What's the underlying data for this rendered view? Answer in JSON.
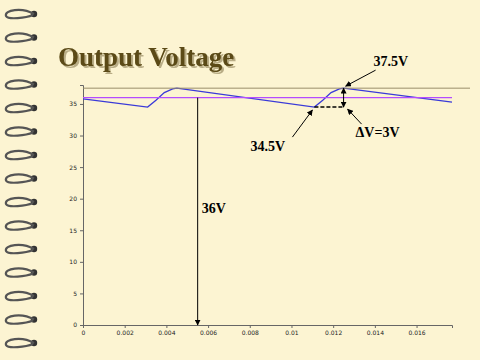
{
  "chart_data": {
    "type": "line",
    "title": "Output Voltage",
    "xlim": [
      0,
      0.0177
    ],
    "xticks": [
      0,
      0.002,
      0.004,
      0.006,
      0.008,
      0.01,
      0.012,
      0.014,
      0.016
    ],
    "ylim": [
      0,
      38
    ],
    "yticks": [
      0,
      5,
      10,
      15,
      20,
      25,
      30,
      35
    ],
    "series": [
      {
        "color": "#3a3ad8",
        "x": [
          0,
          0.0031,
          0.0035,
          0.0039,
          0.0043,
          0.0045,
          0.0111,
          0.0115,
          0.0119,
          0.0123,
          0.0125,
          0.0177
        ],
        "values": [
          35.8,
          34.5,
          35.6,
          36.8,
          37.4,
          37.5,
          34.5,
          35.6,
          36.8,
          37.4,
          37.5,
          35.3
        ]
      },
      {
        "color": "#b44cff",
        "x": [
          0,
          0.0177
        ],
        "values": [
          36,
          36
        ]
      }
    ],
    "annotations": [
      {
        "text": "37.5V",
        "x": 0.0125,
        "y": 37.5
      },
      {
        "text": "34.5V",
        "x": 0.0111,
        "y": 34.5
      },
      {
        "text": "ΔV=3V",
        "x": 0.0125,
        "y_from": 34.5,
        "y_to": 37.5
      },
      {
        "text": "36V",
        "x": 0.0055,
        "y_from": 36,
        "y_to": 0
      }
    ]
  }
}
